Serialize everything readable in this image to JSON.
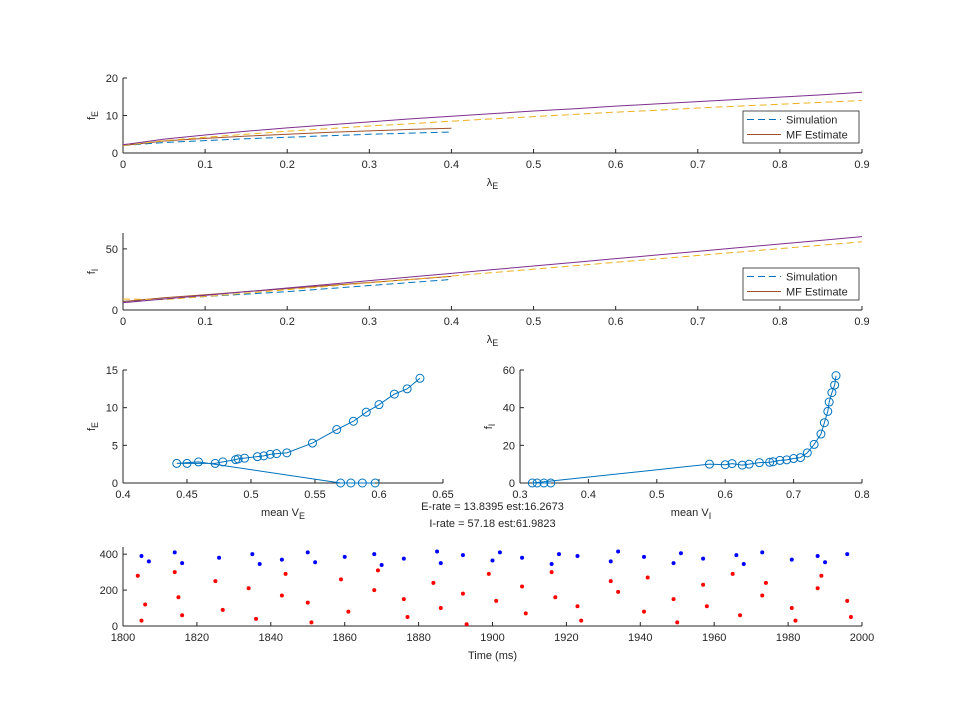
{
  "chart_data": [
    {
      "type": "line",
      "xlabel": "λ",
      "xlabel_sub": "E",
      "ylabel": "f",
      "ylabel_sub": "E",
      "xlim": [
        0,
        0.9
      ],
      "ylim": [
        0,
        20
      ],
      "xticks": [
        0,
        0.1,
        0.2,
        0.3,
        0.4,
        0.5,
        0.6,
        0.7,
        0.8,
        0.9
      ],
      "yticks": [
        0,
        10,
        20
      ],
      "legend": "southeast",
      "series": [
        {
          "name": "Simulation",
          "color": "#0072bd",
          "dash": true,
          "x": [
            0,
            0.05,
            0.1,
            0.15,
            0.2,
            0.25,
            0.3,
            0.35,
            0.4
          ],
          "values": [
            2,
            2.8,
            3.3,
            3.8,
            4.2,
            4.6,
            5,
            5.3,
            5.6
          ]
        },
        {
          "name": "MF Estimate",
          "color": "#a0522d",
          "dash": false,
          "x": [
            0,
            0.05,
            0.1,
            0.15,
            0.2,
            0.25,
            0.3,
            0.35,
            0.4
          ],
          "values": [
            2,
            3.2,
            3.9,
            4.5,
            5,
            5.5,
            5.9,
            6.3,
            6.6
          ]
        },
        {
          "color": "#edb120",
          "dash": true,
          "x": [
            0,
            0.05,
            0.1,
            0.15,
            0.2,
            0.25,
            0.3,
            0.35,
            0.4,
            0.45,
            0.5,
            0.55,
            0.6,
            0.65,
            0.7,
            0.75,
            0.8,
            0.85,
            0.9
          ],
          "values": [
            2,
            3.3,
            4.2,
            5,
            5.8,
            6.5,
            7.2,
            7.8,
            8.5,
            9.1,
            9.7,
            10.3,
            10.9,
            11.4,
            12,
            12.5,
            13,
            13.5,
            14
          ]
        },
        {
          "color": "#7e2f8e",
          "dash": false,
          "x": [
            0,
            0.05,
            0.1,
            0.15,
            0.2,
            0.25,
            0.3,
            0.35,
            0.4,
            0.45,
            0.5,
            0.55,
            0.6,
            0.65,
            0.7,
            0.75,
            0.8,
            0.85,
            0.9
          ],
          "values": [
            2.2,
            3.7,
            4.8,
            5.8,
            6.7,
            7.5,
            8.3,
            9.1,
            9.8,
            10.5,
            11.2,
            11.8,
            12.5,
            13.1,
            13.7,
            14.3,
            14.9,
            15.5,
            16.2
          ]
        }
      ]
    },
    {
      "type": "line",
      "xlabel": "λ",
      "xlabel_sub": "E",
      "ylabel": "f",
      "ylabel_sub": "I",
      "xlim": [
        0,
        0.9
      ],
      "ylim": [
        0,
        63
      ],
      "xticks": [
        0,
        0.1,
        0.2,
        0.3,
        0.4,
        0.5,
        0.6,
        0.7,
        0.8,
        0.9
      ],
      "yticks": [
        0,
        50
      ],
      "legend": "southeast",
      "series": [
        {
          "name": "Simulation",
          "color": "#0072bd",
          "dash": true,
          "x": [
            0,
            0.05,
            0.1,
            0.15,
            0.2,
            0.25,
            0.3,
            0.35,
            0.4
          ],
          "values": [
            7,
            9,
            11,
            13,
            15,
            17.5,
            20,
            22.5,
            25
          ]
        },
        {
          "name": "MF Estimate",
          "color": "#a0522d",
          "dash": false,
          "x": [
            0,
            0.05,
            0.1,
            0.15,
            0.2,
            0.25,
            0.3,
            0.35,
            0.4
          ],
          "values": [
            7,
            10,
            12.5,
            15,
            17.5,
            20,
            22.5,
            25,
            27.5
          ]
        },
        {
          "color": "#edb120",
          "dash": true,
          "x": [
            0,
            0.05,
            0.1,
            0.15,
            0.2,
            0.25,
            0.3,
            0.35,
            0.4,
            0.45,
            0.5,
            0.55,
            0.6,
            0.65,
            0.7,
            0.75,
            0.8,
            0.85,
            0.9
          ],
          "values": [
            9,
            8.5,
            11,
            13.8,
            16.6,
            19.4,
            22.2,
            25,
            27.8,
            30.6,
            33.4,
            36.2,
            39,
            41.8,
            44.6,
            47.4,
            50.2,
            53,
            55.8
          ]
        },
        {
          "color": "#7e2f8e",
          "dash": false,
          "x": [
            0,
            0.05,
            0.1,
            0.15,
            0.2,
            0.25,
            0.3,
            0.35,
            0.4,
            0.45,
            0.5,
            0.55,
            0.6,
            0.65,
            0.7,
            0.75,
            0.8,
            0.85,
            0.9
          ],
          "values": [
            6,
            9,
            12,
            15,
            18,
            21,
            24,
            27,
            30,
            33,
            36,
            39,
            42,
            45,
            48,
            51,
            54,
            57,
            60
          ]
        }
      ]
    },
    {
      "type": "line",
      "xlabel": "mean V",
      "xlabel_sub": "E",
      "ylabel": "f",
      "ylabel_sub": "E",
      "xlim": [
        0.4,
        0.65
      ],
      "ylim": [
        0,
        15
      ],
      "xticks": [
        0.4,
        0.45,
        0.5,
        0.55,
        0.6,
        0.65
      ],
      "yticks": [
        0,
        5,
        10,
        15
      ],
      "series": [
        {
          "color": "#0072bd",
          "marker": "o",
          "x": [
            0.597,
            0.587,
            0.578,
            0.57,
            0.459,
            0.442,
            0.45,
            0.472,
            0.478,
            0.488,
            0.49,
            0.495,
            0.505,
            0.51,
            0.515,
            0.52,
            0.528,
            0.548,
            0.567,
            0.58,
            0.59,
            0.6,
            0.612,
            0.622,
            0.632
          ],
          "values": [
            0,
            0,
            0,
            0,
            2.8,
            2.6,
            2.6,
            2.6,
            2.8,
            3.1,
            3.2,
            3.3,
            3.5,
            3.6,
            3.8,
            3.9,
            4,
            5.3,
            7.1,
            8.2,
            9.4,
            10.4,
            11.8,
            12.5,
            13.9
          ]
        }
      ]
    },
    {
      "type": "line",
      "xlabel": "mean V",
      "xlabel_sub": "I",
      "ylabel": "f",
      "ylabel_sub": "I",
      "xlim": [
        0.3,
        0.8
      ],
      "ylim": [
        0,
        60
      ],
      "xticks": [
        0.3,
        0.4,
        0.5,
        0.6,
        0.7,
        0.8
      ],
      "yticks": [
        0,
        20,
        40,
        60
      ],
      "series": [
        {
          "color": "#0072bd",
          "marker": "o",
          "x": [
            0.345,
            0.335,
            0.325,
            0.318,
            0.577,
            0.6,
            0.61,
            0.625,
            0.635,
            0.65,
            0.665,
            0.67,
            0.68,
            0.69,
            0.7,
            0.71,
            0.72,
            0.73,
            0.74,
            0.745,
            0.75,
            0.752,
            0.756,
            0.76,
            0.762
          ],
          "values": [
            0,
            0,
            0,
            0,
            10,
            9.7,
            10.3,
            9.5,
            10,
            10.8,
            11,
            11.3,
            12,
            12.3,
            13,
            13.5,
            16,
            20.5,
            26,
            32,
            38,
            43,
            48,
            52,
            57
          ]
        }
      ]
    },
    {
      "type": "scatter",
      "title": [
        "E-rate = 13.8395 est:16.2673",
        "I-rate = 57.18 est:61.9823"
      ],
      "xlabel": "Time (ms)",
      "xlim": [
        1800,
        2000
      ],
      "ylim": [
        0,
        440
      ],
      "xticks": [
        1800,
        1820,
        1840,
        1860,
        1880,
        1900,
        1920,
        1940,
        1960,
        1980,
        2000
      ],
      "yticks": [
        0,
        200,
        400
      ],
      "series": [
        {
          "color": "#ff0000",
          "x": [
            1804,
            1806,
            1805,
            1814,
            1815,
            1816,
            1825,
            1827,
            1834,
            1836,
            1843,
            1844,
            1850,
            1851,
            1859,
            1861,
            1868,
            1869,
            1876,
            1877,
            1884,
            1886,
            1892,
            1893,
            1899,
            1901,
            1908,
            1909,
            1916,
            1917,
            1923,
            1924,
            1932,
            1934,
            1941,
            1942,
            1949,
            1950,
            1957,
            1958,
            1965,
            1967,
            1973,
            1974,
            1981,
            1982,
            1988,
            1989,
            1996,
            1997
          ],
          "values": [
            280,
            120,
            30,
            300,
            160,
            60,
            250,
            90,
            210,
            40,
            170,
            290,
            130,
            20,
            260,
            80,
            200,
            310,
            150,
            50,
            240,
            100,
            180,
            10,
            290,
            140,
            220,
            70,
            300,
            160,
            110,
            30,
            250,
            190,
            80,
            270,
            150,
            20,
            230,
            110,
            290,
            60,
            170,
            240,
            100,
            30,
            210,
            280,
            140,
            50
          ]
        },
        {
          "color": "#0000ff",
          "x": [
            1805,
            1807,
            1814,
            1816,
            1826,
            1835,
            1837,
            1843,
            1850,
            1852,
            1860,
            1868,
            1870,
            1876,
            1885,
            1886,
            1892,
            1900,
            1902,
            1908,
            1916,
            1918,
            1923,
            1932,
            1934,
            1941,
            1949,
            1951,
            1957,
            1966,
            1968,
            1973,
            1981,
            1988,
            1990,
            1996
          ],
          "values": [
            390,
            360,
            410,
            350,
            380,
            400,
            345,
            370,
            410,
            355,
            385,
            400,
            340,
            375,
            415,
            350,
            395,
            365,
            410,
            380,
            345,
            400,
            390,
            360,
            415,
            385,
            350,
            405,
            375,
            395,
            345,
            410,
            370,
            390,
            355,
            400
          ]
        }
      ]
    }
  ]
}
